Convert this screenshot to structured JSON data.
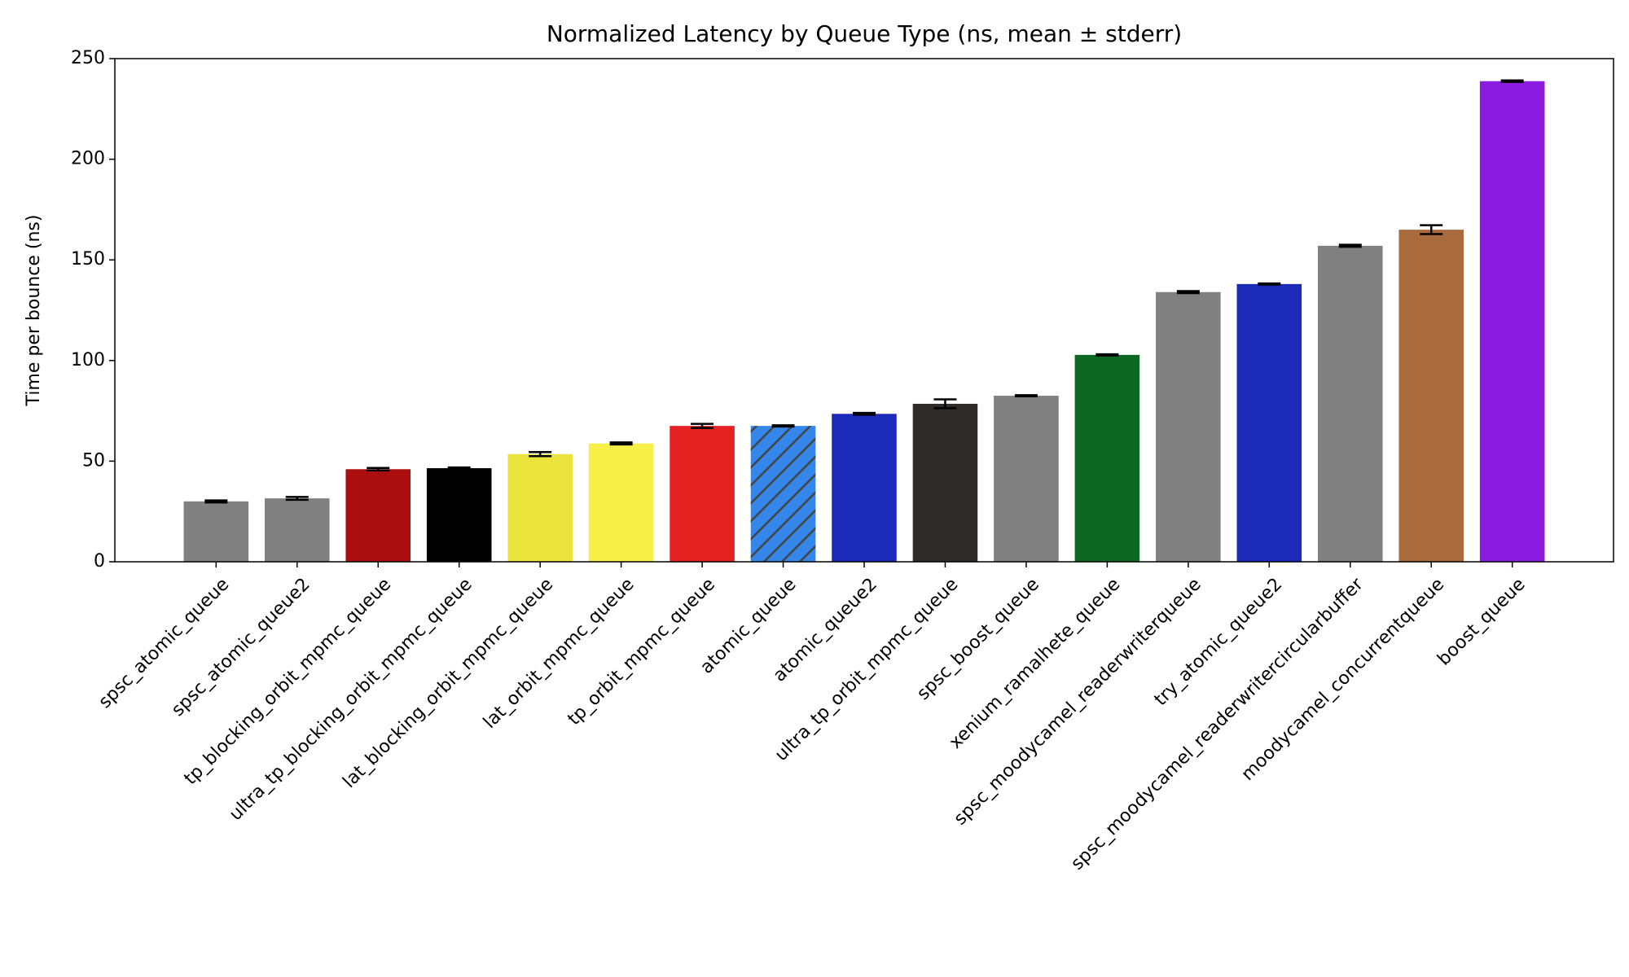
{
  "chart_data": {
    "type": "bar",
    "title": "Normalized Latency by Queue Type (ns, mean ± stderr)",
    "y_label": "Time per bounce (ns)",
    "categories": [
      "spsc_atomic_queue",
      "spsc_atomic_queue2",
      "tp_blocking_orbit_mpmc_queue",
      "ultra_tp_blocking_orbit_mpmc_queue",
      "lat_blocking_orbit_mpmc_queue",
      "lat_orbit_mpmc_queue",
      "tp_orbit_mpmc_queue",
      "atomic_queue",
      "atomic_queue2",
      "ultra_tp_orbit_mpmc_queue",
      "spsc_boost_queue",
      "xenium_ramalhete_queue",
      "spsc_moodycamel_readerwriterqueue",
      "try_atomic_queue2",
      "spsc_moodycamel_readerwritercircularbuffer",
      "moodycamel_concurrentqueue",
      "boost_queue"
    ],
    "values": [
      30.0,
      31.5,
      46.0,
      46.5,
      53.5,
      58.8,
      67.5,
      67.5,
      73.5,
      78.5,
      82.5,
      102.8,
      134.0,
      138.0,
      157.0,
      165.0,
      238.8
    ],
    "errors": [
      0.5,
      0.7,
      0.6,
      0.4,
      1.0,
      0.5,
      1.0,
      0.3,
      0.5,
      2.2,
      0.3,
      0.3,
      0.5,
      0.3,
      0.5,
      2.2,
      0.4
    ],
    "colors": [
      "#808080",
      "#808080",
      "#ab0e0e",
      "#000000",
      "#ebe43c",
      "#f6f046",
      "#e52121",
      "#3486e8",
      "#1b2ab8",
      "#2f2b2b",
      "#808080",
      "#0b6722",
      "#808080",
      "#1b2ab8",
      "#808080",
      "#a96b3e",
      "#8c1be0"
    ],
    "hatches": [
      null,
      null,
      null,
      null,
      null,
      null,
      null,
      "/",
      null,
      null,
      null,
      null,
      null,
      null,
      null,
      null,
      null
    ],
    "ylim": [
      0,
      250
    ],
    "yticks": [
      0,
      50,
      100,
      150,
      200,
      250
    ]
  }
}
